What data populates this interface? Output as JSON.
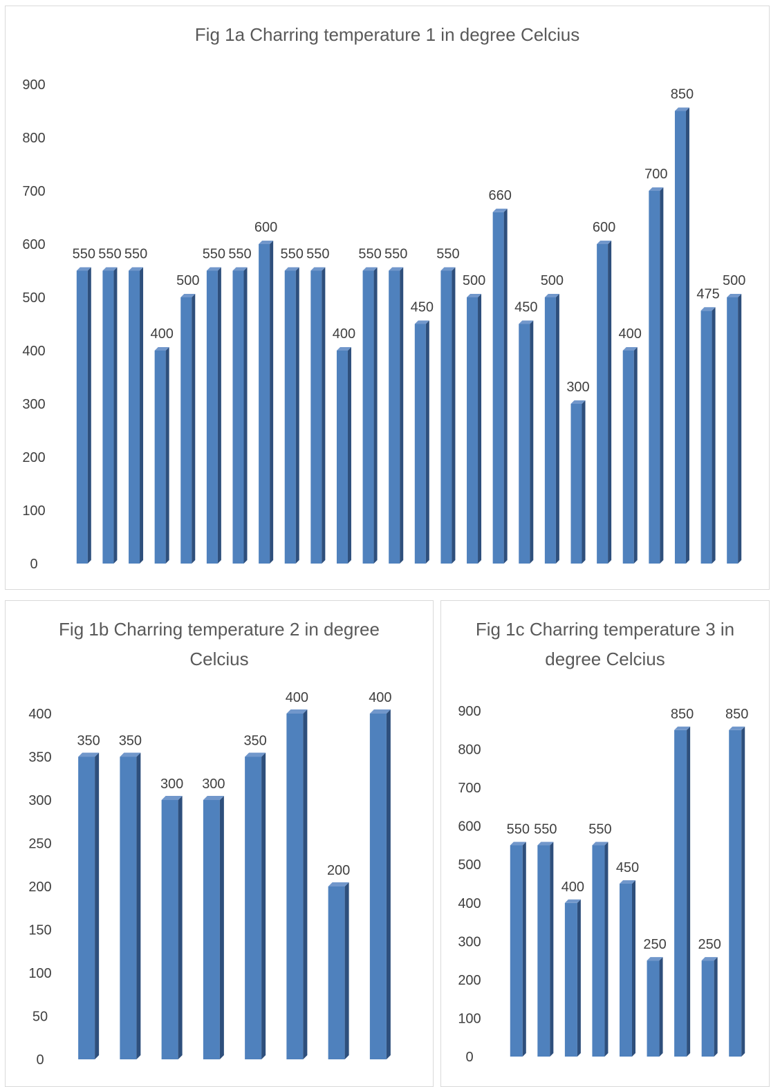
{
  "colors": {
    "bar_front": "#4f81bd",
    "bar_side": "#2e4f7c",
    "bar_top": "#7197cb",
    "text": "#404040",
    "title": "#595959"
  },
  "chart_data": [
    {
      "id": "fig1a",
      "type": "bar",
      "title": "Fig 1a Charring temperature 1 in degree Celcius",
      "ylim": [
        0,
        900
      ],
      "yticks": [
        "0",
        "100",
        "200",
        "300",
        "400",
        "500",
        "600",
        "700",
        "800",
        "900"
      ],
      "grid": false,
      "legend": "none",
      "values": [
        550,
        550,
        550,
        400,
        500,
        550,
        550,
        600,
        550,
        550,
        400,
        550,
        550,
        450,
        550,
        500,
        660,
        450,
        500,
        300,
        600,
        400,
        700,
        850,
        475,
        500
      ],
      "data_labels": [
        "550",
        "550",
        "550",
        "400",
        "500",
        "550",
        "550",
        "600",
        "550",
        "550",
        "400",
        "550",
        "550",
        "450",
        "550",
        "500",
        "660",
        "450",
        "500",
        "300",
        "600",
        "400",
        "700",
        "850",
        "475",
        "500"
      ]
    },
    {
      "id": "fig1b",
      "type": "bar",
      "title": "Fig 1b Charring temperature 2 in degree Celcius",
      "ylim": [
        0,
        400
      ],
      "yticks": [
        "0",
        "50",
        "100",
        "150",
        "200",
        "250",
        "300",
        "350",
        "400"
      ],
      "grid": false,
      "legend": "none",
      "values": [
        350,
        350,
        300,
        300,
        350,
        400,
        200,
        400
      ],
      "data_labels": [
        "350",
        "350",
        "300",
        "300",
        "350",
        "400",
        "200",
        "400"
      ]
    },
    {
      "id": "fig1c",
      "type": "bar",
      "title": "Fig 1c Charring temperature 3 in degree Celcius",
      "ylim": [
        0,
        900
      ],
      "yticks": [
        "0",
        "100",
        "200",
        "300",
        "400",
        "500",
        "600",
        "700",
        "800",
        "900"
      ],
      "grid": false,
      "legend": "none",
      "values": [
        550,
        550,
        400,
        550,
        450,
        250,
        850,
        250,
        850
      ],
      "data_labels": [
        "550",
        "550",
        "400",
        "550",
        "450",
        "250",
        "850",
        "250",
        "850"
      ]
    }
  ]
}
